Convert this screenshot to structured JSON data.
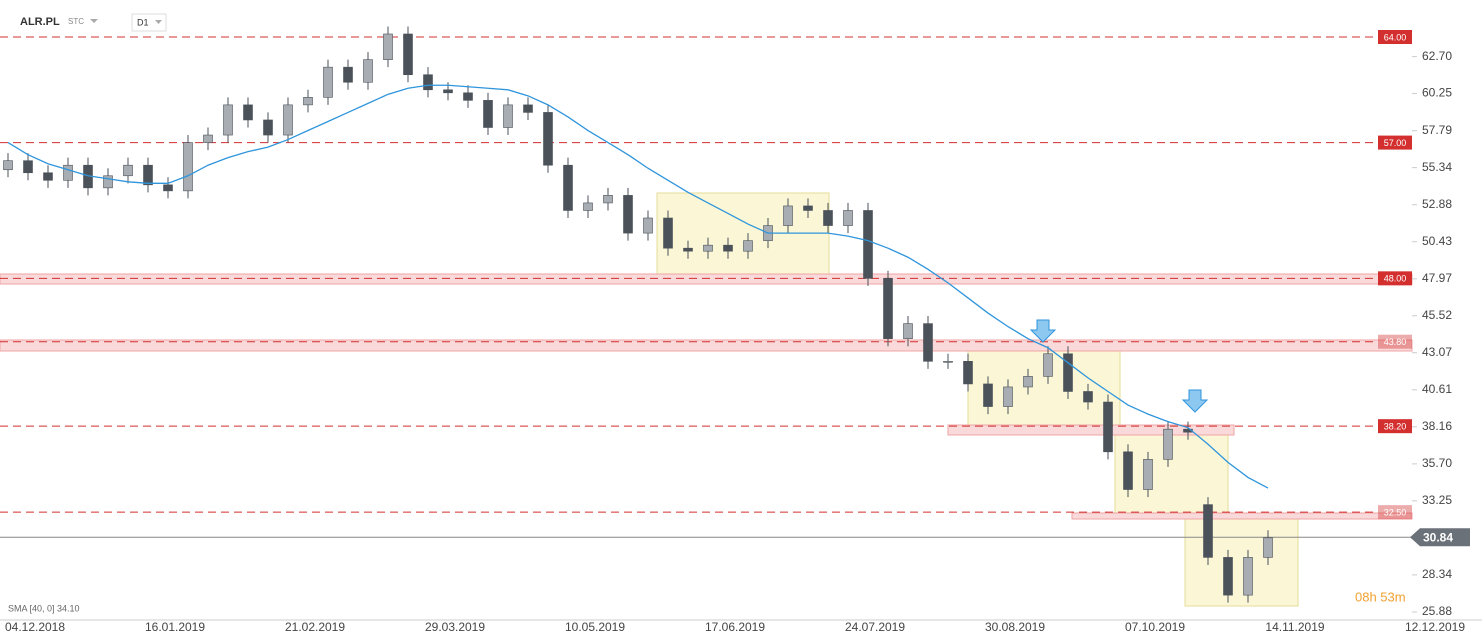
{
  "header": {
    "symbol": "ALR.PL",
    "market": "STC",
    "interval": "D1"
  },
  "indicator_label": "SMA [40, 0] 34.10",
  "timer": "08h 53m",
  "chart_data": {
    "type": "candlestick",
    "x_labels": [
      "04.12.2018",
      "16.01.2019",
      "21.02.2019",
      "29.03.2019",
      "10.05.2019",
      "17.06.2019",
      "24.07.2019",
      "30.08.2019",
      "07.10.2019",
      "14.11.2019",
      "12.12.2019"
    ],
    "open": [
      55.2,
      55.8,
      55.0,
      54.5,
      55.5,
      54.0,
      54.8,
      55.5,
      54.2,
      53.8,
      57.0,
      57.5,
      59.5,
      58.5,
      57.5,
      59.5,
      60.0,
      62.0,
      61.0,
      62.5,
      64.2,
      61.5,
      60.5,
      60.3,
      59.8,
      58.0,
      59.5,
      59.0,
      55.5,
      52.5,
      53.0,
      53.5,
      51.0,
      52.0,
      50.0,
      49.8,
      50.2,
      49.8,
      50.5,
      51.5,
      52.8,
      52.5,
      51.5,
      52.5,
      48.0,
      44.0,
      45.0,
      42.5,
      42.5,
      41.0,
      39.5,
      40.8,
      41.5,
      43.0,
      40.5,
      39.8,
      36.5,
      34.0,
      36.0,
      38.0,
      33.0,
      29.5,
      27.0,
      29.5
    ],
    "high": [
      56.3,
      56.3,
      55.5,
      56.0,
      56.0,
      55.3,
      56.0,
      56.0,
      54.7,
      57.5,
      58.0,
      60.0,
      60.0,
      59.0,
      60.0,
      60.5,
      62.5,
      62.5,
      63.0,
      64.7,
      64.7,
      62.0,
      61.0,
      60.8,
      60.3,
      60.0,
      60.0,
      59.5,
      56.0,
      53.5,
      54.0,
      54.0,
      52.5,
      52.5,
      50.5,
      50.7,
      50.7,
      51.0,
      52.0,
      53.3,
      53.3,
      53.0,
      53.0,
      53.0,
      48.5,
      45.5,
      45.5,
      43.0,
      43.0,
      41.5,
      41.3,
      42.0,
      43.5,
      43.5,
      41.0,
      40.3,
      37.0,
      36.5,
      38.5,
      38.5,
      33.5,
      30.0,
      30.0,
      31.3
    ],
    "low": [
      54.7,
      54.5,
      54.0,
      54.0,
      53.5,
      53.5,
      54.3,
      53.7,
      53.3,
      53.3,
      56.5,
      57.0,
      58.0,
      57.0,
      57.0,
      59.0,
      59.5,
      60.5,
      60.5,
      62.0,
      61.0,
      60.0,
      59.8,
      59.3,
      57.5,
      57.5,
      58.5,
      55.0,
      52.0,
      52.0,
      52.5,
      50.5,
      50.5,
      49.5,
      49.3,
      49.3,
      49.3,
      49.3,
      50.0,
      51.0,
      52.0,
      51.0,
      51.0,
      47.5,
      43.5,
      43.5,
      42.0,
      42.0,
      40.5,
      39.0,
      39.0,
      40.3,
      41.0,
      40.0,
      39.3,
      36.0,
      33.5,
      33.5,
      35.5,
      37.3,
      29.0,
      26.5,
      26.5,
      29.0
    ],
    "close": [
      55.8,
      55.0,
      54.5,
      55.5,
      54.0,
      54.8,
      55.5,
      54.2,
      53.8,
      57.0,
      57.5,
      59.5,
      58.5,
      57.5,
      59.5,
      60.0,
      62.0,
      61.0,
      62.5,
      64.2,
      61.5,
      60.5,
      60.3,
      59.8,
      58.0,
      59.5,
      59.0,
      55.5,
      52.5,
      53.0,
      53.5,
      51.0,
      52.0,
      50.0,
      49.8,
      50.2,
      49.8,
      50.5,
      51.5,
      52.8,
      52.5,
      51.5,
      52.5,
      48.0,
      44.0,
      45.0,
      42.5,
      42.5,
      41.0,
      39.5,
      40.8,
      41.5,
      43.0,
      40.5,
      39.8,
      36.5,
      34.0,
      36.0,
      38.0,
      37.8,
      29.5,
      27.0,
      29.5,
      30.8
    ],
    "up_color": "#a7adb3",
    "down_color": "#4b5259",
    "sma": {
      "color": "#2f95dc",
      "values": [
        57.0,
        56.2,
        55.6,
        55.2,
        54.8,
        54.6,
        54.4,
        54.3,
        54.3,
        54.8,
        55.5,
        56.0,
        56.4,
        56.7,
        57.2,
        57.8,
        58.4,
        59.0,
        59.6,
        60.2,
        60.6,
        60.8,
        60.8,
        60.7,
        60.6,
        60.5,
        60.1,
        59.5,
        58.7,
        57.8,
        57.0,
        56.2,
        55.3,
        54.5,
        53.7,
        53.0,
        52.3,
        51.6,
        51.0,
        51.0,
        51.0,
        51.0,
        50.8,
        50.5,
        50.0,
        49.4,
        48.6,
        47.7,
        46.7,
        45.7,
        44.8,
        44.0,
        43.4,
        42.4,
        41.4,
        40.5,
        39.6,
        39.0,
        38.5,
        38.1,
        37.0,
        35.8,
        34.8,
        34.1
      ]
    },
    "ylim": [
      25.35,
      65.79
    ],
    "yticks": [
      {
        "value": 62.7,
        "label": "62.70"
      },
      60.25,
      57.79,
      55.34,
      52.88,
      50.43,
      47.97,
      45.52,
      43.07,
      40.61,
      38.16,
      {
        "value": 35.7,
        "label": "35.70"
      },
      33.25,
      28.34,
      25.88
    ],
    "levels": [
      {
        "value": 64,
        "label": "64.00"
      },
      {
        "value": 57,
        "label": "57.00"
      },
      {
        "value": 48,
        "label": "48.00"
      },
      {
        "value": 43.8,
        "label": "43.80"
      },
      {
        "value": 38.2,
        "label": "38.20"
      },
      {
        "value": 32.5,
        "label": "32.50"
      }
    ],
    "level_color": "#d32f2f",
    "last": 30.84
  }
}
